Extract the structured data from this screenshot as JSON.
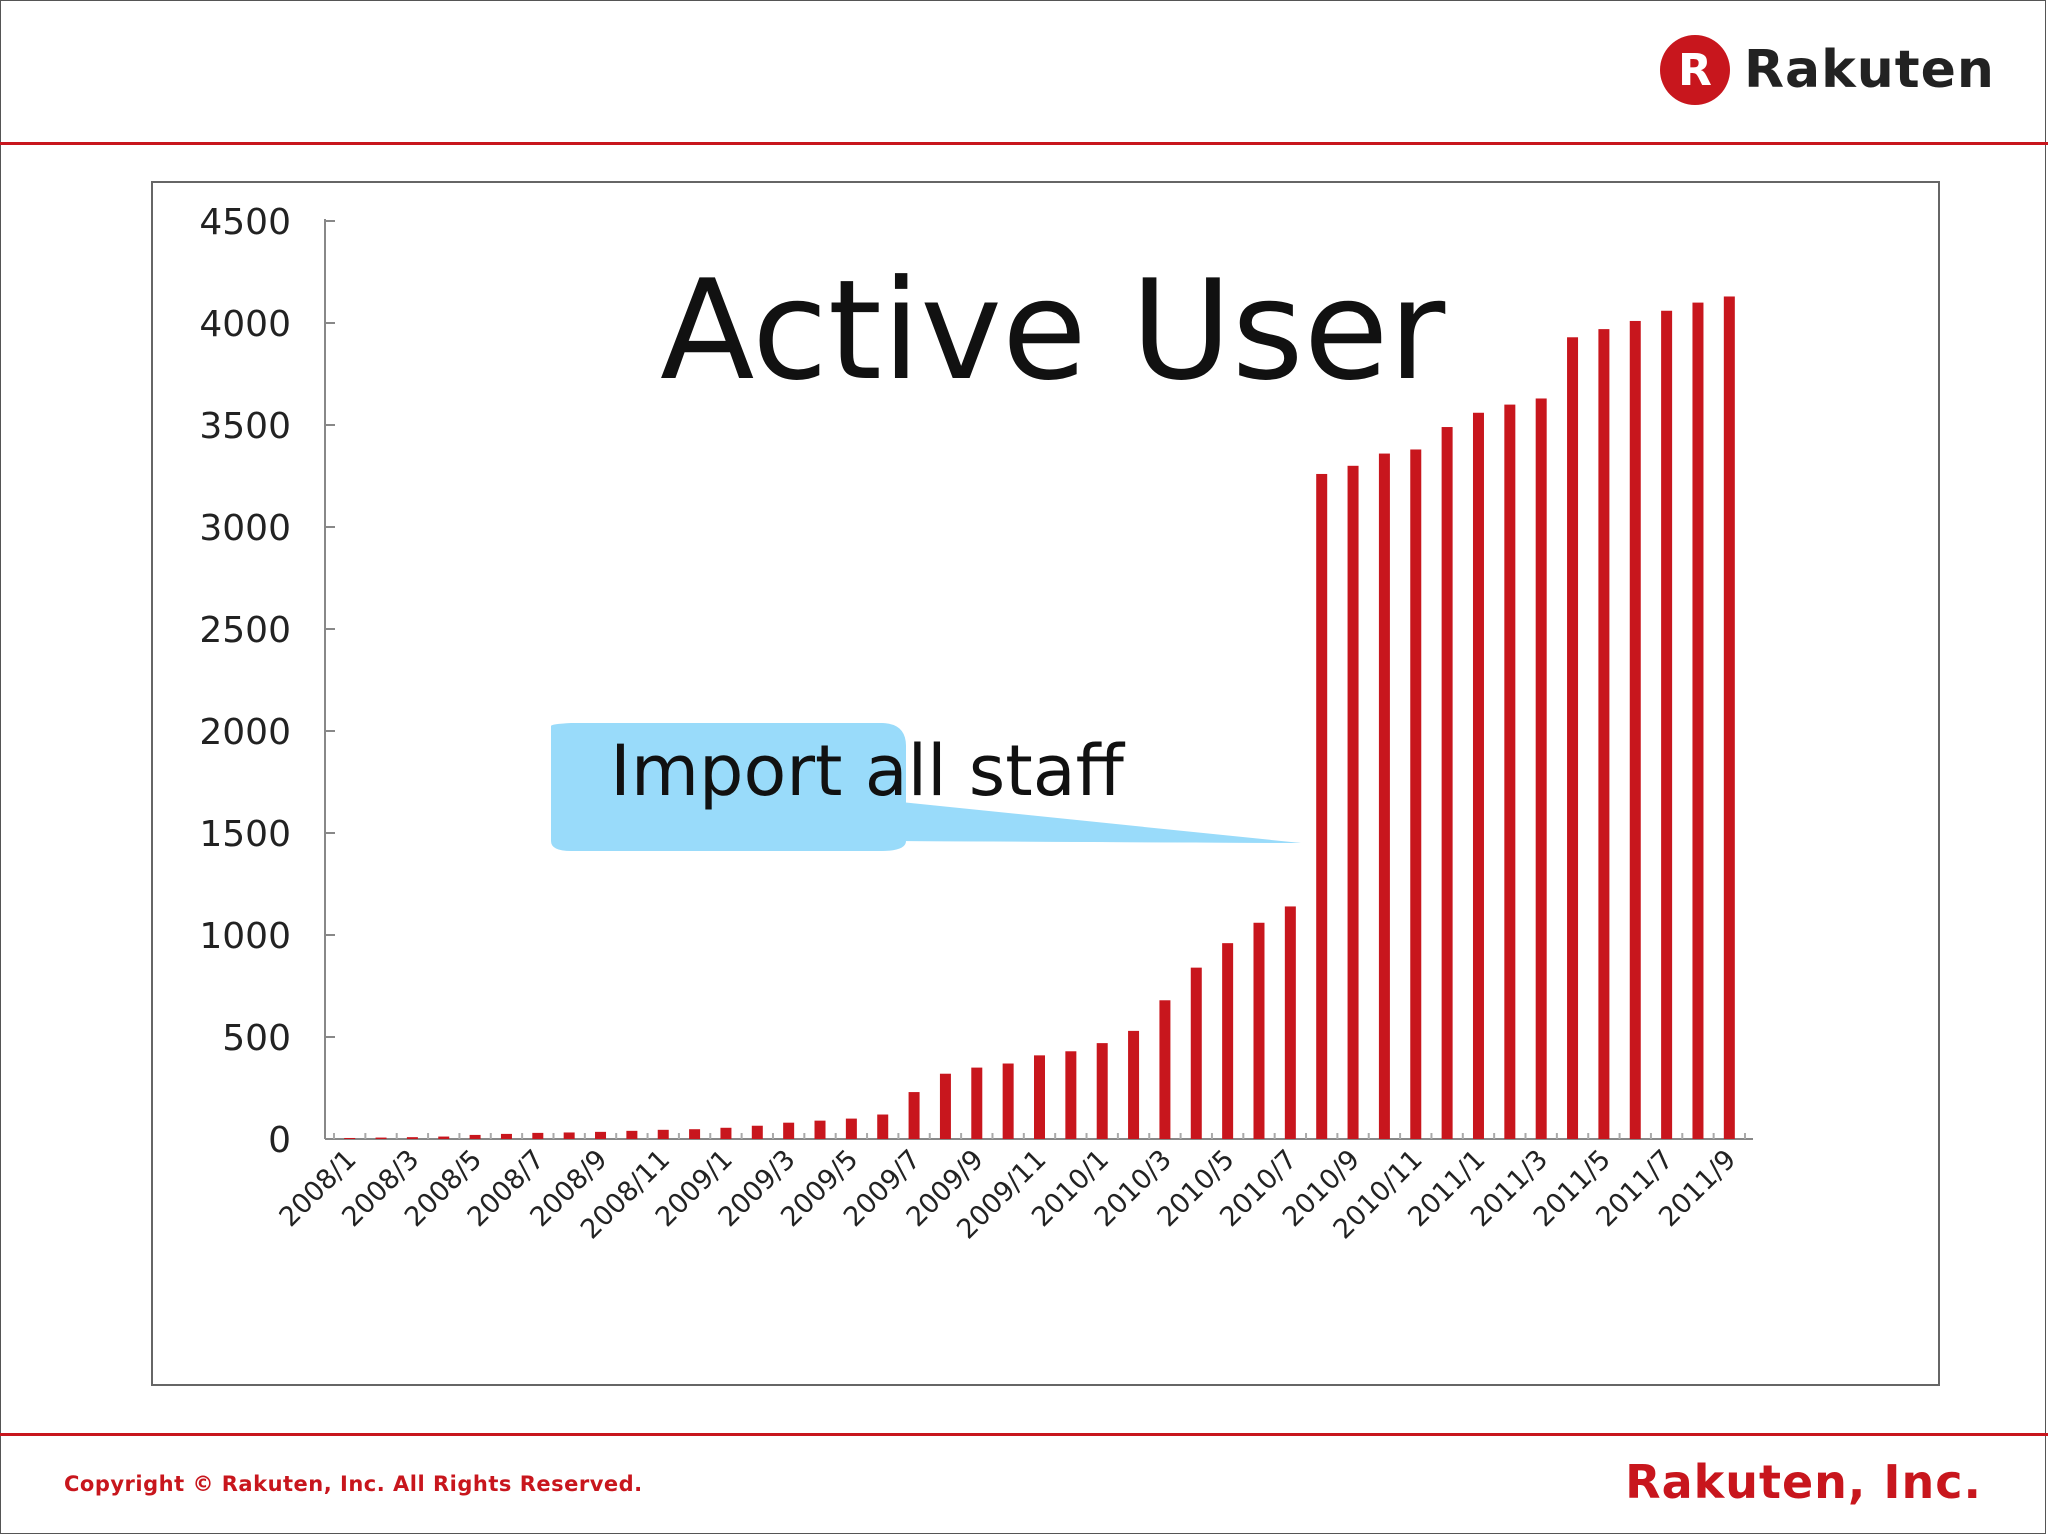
{
  "header": {
    "logo_letter": "R",
    "logo_text": "Rakuten"
  },
  "footer": {
    "copyright": "Copyright © Rakuten, Inc. All Rights Reserved.",
    "company": "Rakuten, Inc."
  },
  "colors": {
    "brand_red": "#c8161d",
    "callout_blue": "#99dbfa"
  },
  "callout": {
    "text": "Import all staff"
  },
  "chart_data": {
    "type": "bar",
    "title": "Active User",
    "xlabel": "",
    "ylabel": "",
    "ylim": [
      0,
      4500
    ],
    "yticks": [
      0,
      500,
      1000,
      1500,
      2000,
      2500,
      3000,
      3500,
      4000,
      4500
    ],
    "grid": false,
    "legend": "none",
    "categories": [
      "2008/1",
      "2008/2",
      "2008/3",
      "2008/4",
      "2008/5",
      "2008/6",
      "2008/7",
      "2008/8",
      "2008/9",
      "2008/10",
      "2008/11",
      "2008/12",
      "2009/1",
      "2009/2",
      "2009/3",
      "2009/4",
      "2009/5",
      "2009/6",
      "2009/7",
      "2009/8",
      "2009/9",
      "2009/10",
      "2009/11",
      "2009/12",
      "2010/1",
      "2010/2",
      "2010/3",
      "2010/4",
      "2010/5",
      "2010/6",
      "2010/7",
      "2010/8",
      "2010/9",
      "2010/10",
      "2010/11",
      "2010/12",
      "2011/1",
      "2011/2",
      "2011/3",
      "2011/4",
      "2011/5",
      "2011/6",
      "2011/7",
      "2011/8",
      "2011/9"
    ],
    "tick_labels": [
      "2008/1",
      "2008/3",
      "2008/5",
      "2008/7",
      "2008/9",
      "2008/11",
      "2009/1",
      "2009/3",
      "2009/5",
      "2009/7",
      "2009/9",
      "2009/11",
      "2010/1",
      "2010/3",
      "2010/5",
      "2010/7",
      "2010/9",
      "2010/11",
      "2011/1",
      "2011/3",
      "2011/5",
      "2011/7",
      "2011/9"
    ],
    "values": [
      5,
      7,
      9,
      12,
      20,
      25,
      30,
      32,
      35,
      40,
      45,
      48,
      55,
      65,
      80,
      90,
      100,
      120,
      230,
      320,
      350,
      370,
      410,
      430,
      470,
      530,
      680,
      840,
      960,
      1060,
      1140,
      3260,
      3300,
      3360,
      3380,
      3490,
      3560,
      3600,
      3630,
      3930,
      3970,
      4010,
      4060,
      4100,
      4130
    ]
  }
}
